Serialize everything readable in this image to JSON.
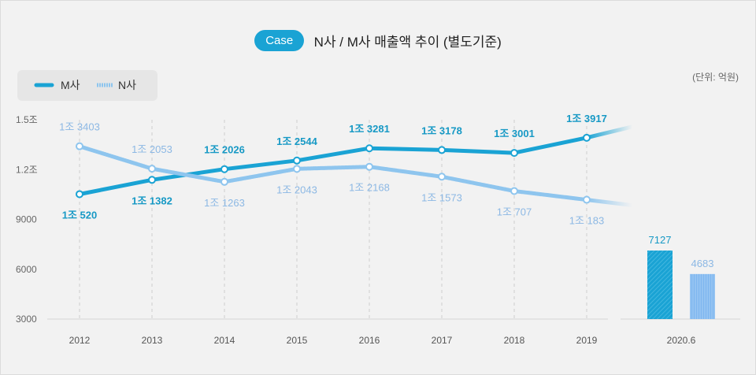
{
  "header": {
    "badge": "Case",
    "title": "N사 / M사 매출액 추이 (별도기준)"
  },
  "unit_label": "(단위: 억원)",
  "colors": {
    "m_series": "#1aa3d4",
    "n_series": "#8ec5ee",
    "m_label": "#1799c5",
    "n_label": "#8cb8e4"
  },
  "chart_data": [
    {
      "type": "line",
      "title": "N사 / M사 매출액 추이 (별도기준)",
      "x": [
        "2012",
        "2013",
        "2014",
        "2015",
        "2016",
        "2017",
        "2018",
        "2019"
      ],
      "yticks": [
        "3000",
        "6000",
        "9000",
        "1.2조",
        "1.5조"
      ],
      "ylim": [
        3000,
        15000
      ],
      "grid": "vertical dashed",
      "legend_position": "top-left",
      "series": [
        {
          "name": "M사",
          "values": [
            10520,
            11382,
            12026,
            12544,
            13281,
            13178,
            13001,
            13917
          ],
          "labels": [
            "1조 520",
            "1조 1382",
            "1조 2026",
            "1조 2544",
            "1조 3281",
            "1조 3178",
            "1조 3001",
            "1조 3917"
          ]
        },
        {
          "name": "N사",
          "values": [
            13403,
            12053,
            11263,
            12043,
            12168,
            11573,
            10707,
            10183
          ],
          "labels": [
            "1조 3403",
            "1조 2053",
            "1조 1263",
            "1조 2043",
            "1조 2168",
            "1조 1573",
            "1조 707",
            "1조 183"
          ]
        }
      ]
    },
    {
      "type": "bar",
      "categories": [
        "2020.6"
      ],
      "series": [
        {
          "name": "M사",
          "values": [
            7127
          ],
          "labels": [
            "7127"
          ]
        },
        {
          "name": "N사",
          "values": [
            4683
          ],
          "labels": [
            "4683"
          ]
        }
      ]
    }
  ]
}
